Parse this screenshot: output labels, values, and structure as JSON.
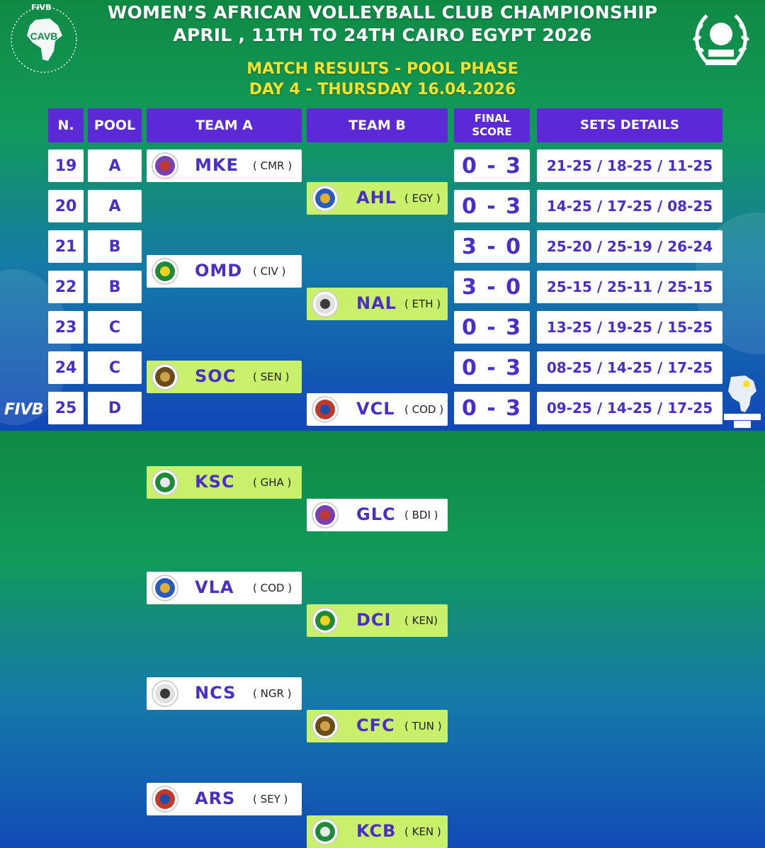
{
  "header": {
    "title_line1": "WOMEN’S AFRICAN VOLLEYBALL CLUB CHAMPIONSHIP",
    "title_line2": "APRIL , 11TH TO 24TH CAIRO EGYPT 2026",
    "subtitle_line1": "MATCH RESULTS - POOL PHASE",
    "subtitle_line2": "DAY 4 - THURSDAY 16.04.2026"
  },
  "logos": {
    "cavb_text": "CAVB",
    "fivb_top": "FIVB",
    "fivb_bottom": "FIVB",
    "egypt_federation_icon": "egypt-volleyball-wreath-icon",
    "african_championship_icon": "african-26-icon"
  },
  "table": {
    "columns": {
      "n": "N.",
      "pool": "POOL",
      "team_a": "TEAM A",
      "team_b": "TEAM B",
      "final_score_line1": "FINAL",
      "final_score_line2": "SCORE",
      "sets": "SETS DETAILS"
    },
    "rows": [
      {
        "n": "19",
        "pool": "A",
        "team_a": {
          "code": "MKE",
          "country": "( CMR )"
        },
        "team_b": {
          "code": "AHL",
          "country": "( EGY )"
        },
        "score": "0 - 3",
        "sets": "21-25 / 18-25 / 11-25",
        "winner": "b"
      },
      {
        "n": "20",
        "pool": "A",
        "team_a": {
          "code": "OMD",
          "country": "( CIV )"
        },
        "team_b": {
          "code": "NAL",
          "country": "( ETH )"
        },
        "score": "0 - 3",
        "sets": "14-25 / 17-25 / 08-25",
        "winner": "b"
      },
      {
        "n": "21",
        "pool": "B",
        "team_a": {
          "code": "SOC",
          "country": "( SEN )"
        },
        "team_b": {
          "code": "VCL",
          "country": "( COD )"
        },
        "score": "3 - 0",
        "sets": "25-20 / 25-19 / 26-24",
        "winner": "a"
      },
      {
        "n": "22",
        "pool": "B",
        "team_a": {
          "code": "KSC",
          "country": "( GHA )"
        },
        "team_b": {
          "code": "GLC",
          "country": "( BDI )"
        },
        "score": "3 - 0",
        "sets": "25-15 / 25-11 / 25-15",
        "winner": "a"
      },
      {
        "n": "23",
        "pool": "C",
        "team_a": {
          "code": "VLA",
          "country": "( COD )"
        },
        "team_b": {
          "code": "DCI",
          "country": "( KEN)"
        },
        "score": "0 - 3",
        "sets": "13-25 / 19-25 / 15-25",
        "winner": "b"
      },
      {
        "n": "24",
        "pool": "C",
        "team_a": {
          "code": "NCS",
          "country": "( NGR )"
        },
        "team_b": {
          "code": "CFC",
          "country": "( TUN )"
        },
        "score": "0 - 3",
        "sets": "08-25 / 14-25 / 17-25",
        "winner": "b"
      },
      {
        "n": "25",
        "pool": "D",
        "team_a": {
          "code": "ARS",
          "country": "( SEY )"
        },
        "team_b": {
          "code": "KCB",
          "country": "( KEN )"
        },
        "score": "0 - 3",
        "sets": "09-25 / 14-25 / 17-25",
        "winner": "b"
      }
    ]
  },
  "colors": {
    "header_purple": "#5b2ad6",
    "text_purple": "#4b2fc4",
    "winner_highlight": "#c8f06b",
    "subtitle_yellow": "#f5e12a"
  }
}
